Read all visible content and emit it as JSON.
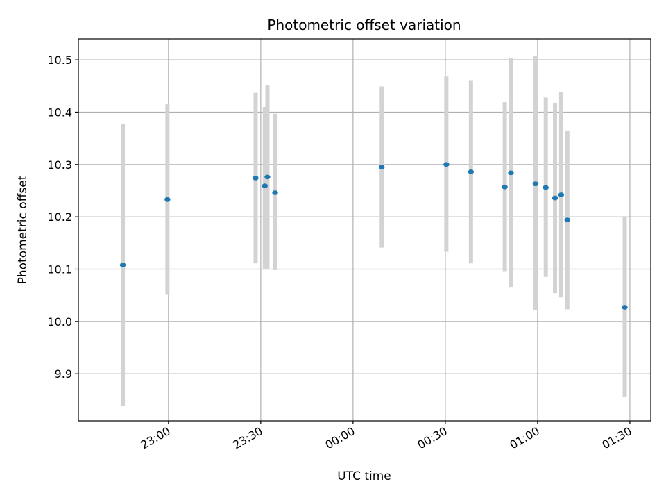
{
  "chart_data": {
    "type": "scatter",
    "title": "Photometric offset variation",
    "xlabel": "UTC time",
    "ylabel": "Photometric offset",
    "x_ticks": [
      "23:00",
      "23:30",
      "00:00",
      "00:30",
      "01:00",
      "01:30"
    ],
    "y_ticks": [
      "9.9",
      "10.0",
      "10.1",
      "10.2",
      "10.3",
      "10.4",
      "10.5"
    ],
    "xlim": [
      "22:30:43",
      "01:36:47"
    ],
    "ylim": [
      9.81,
      10.54
    ],
    "grid": true,
    "series": [
      {
        "x": [
          "22:45:10",
          "22:59:40",
          "23:28:20",
          "23:31:20",
          "23:32:10",
          "23:34:40",
          "00:09:20",
          "00:30:20",
          "00:38:20",
          "00:49:20",
          "00:51:20",
          "00:59:20",
          "01:02:40",
          "01:05:40",
          "01:07:40",
          "01:09:40",
          "01:28:20"
        ],
        "y": [
          10.108,
          10.233,
          10.274,
          10.259,
          10.276,
          10.246,
          10.295,
          10.3,
          10.286,
          10.257,
          10.284,
          10.263,
          10.256,
          10.236,
          10.242,
          10.194,
          10.027
        ],
        "yerr_low": [
          9.838,
          10.051,
          10.111,
          10.101,
          10.1,
          10.098,
          10.141,
          10.133,
          10.111,
          10.096,
          10.066,
          10.021,
          10.085,
          10.054,
          10.046,
          10.023,
          9.855
        ],
        "yerr_high": [
          10.378,
          10.415,
          10.437,
          10.41,
          10.452,
          10.397,
          10.449,
          10.468,
          10.461,
          10.419,
          10.503,
          10.508,
          10.428,
          10.417,
          10.438,
          10.365,
          10.199
        ]
      }
    ],
    "colors": {
      "marker": "#1f77b4",
      "errorbar": "#d3d3d3",
      "grid": "#b0b0b0"
    }
  }
}
